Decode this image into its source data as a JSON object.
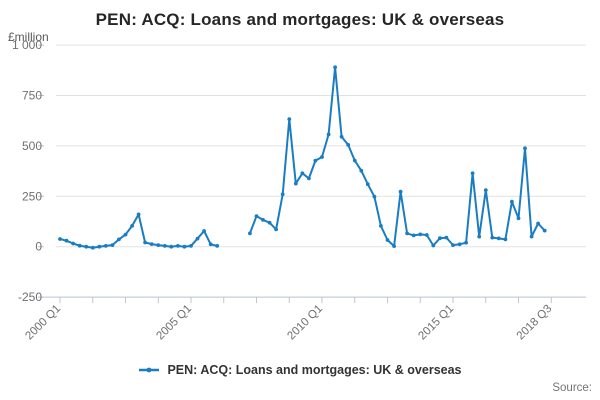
{
  "title": "PEN: ACQ: Loans and mortgages: UK & overseas",
  "y_unit_label": "£million",
  "source_label": "Source:",
  "legend": {
    "label": "PEN: ACQ: Loans and mortgages: UK & overseas"
  },
  "colors": {
    "series": "#1a7dc3",
    "grid": "#e2e2e2",
    "axis": "#b9c7d6",
    "tick_label": "#6f6f6f",
    "title": "#262626",
    "legend_text": "#333333",
    "source_text": "#757575"
  },
  "chart_data": {
    "type": "line",
    "title": "PEN: ACQ: Loans and mortgages: UK & overseas",
    "ylabel": "£million",
    "frequency": "quarterly",
    "x_start": "2000 Q1",
    "x_end": "2018 Q3",
    "ylim": [
      -250,
      1000
    ],
    "y_ticks": [
      1000,
      750,
      500,
      250,
      0,
      -250
    ],
    "y_tick_labels": [
      "1 000",
      "750",
      "500",
      "250",
      "0",
      "-250"
    ],
    "x_tick_labels": [
      "2000 Q1",
      "2005 Q1",
      "2010 Q1",
      "2015 Q1",
      "2018 Q3"
    ],
    "x_minor_tick_step_quarters": 5,
    "x_minor_tick_count": 16,
    "x_labeled_tick_indices": [
      0,
      4,
      8,
      12,
      15
    ],
    "grid": true,
    "legend_position": "bottom",
    "note": "quarterly values 2000 Q1 to 2018 Q3; null = no data shown (gap 2006 Q2 - 2007 Q1)",
    "series": [
      {
        "name": "PEN: ACQ: Loans and mortgages: UK & overseas",
        "values": [
          38,
          30,
          16,
          5,
          0,
          -5,
          0,
          4,
          8,
          36,
          60,
          103,
          160,
          21,
          13,
          8,
          4,
          0,
          4,
          0,
          4,
          40,
          78,
          12,
          4,
          null,
          null,
          null,
          null,
          66,
          152,
          133,
          119,
          86,
          260,
          633,
          313,
          364,
          339,
          427,
          445,
          557,
          890,
          545,
          505,
          427,
          377,
          310,
          248,
          103,
          33,
          3,
          273,
          66,
          56,
          61,
          58,
          6,
          42,
          45,
          8,
          12,
          20,
          364,
          50,
          281,
          45,
          41,
          36,
          223,
          141,
          488,
          50,
          115,
          80
        ]
      }
    ]
  }
}
